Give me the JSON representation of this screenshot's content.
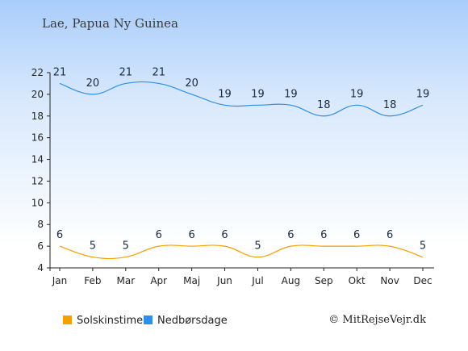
{
  "title": "Lae, Papua Ny Guinea",
  "credit": "© MitRejseVejr.dk",
  "colors": {
    "sunshine": "#f5a000",
    "rain": "#2f8fe8"
  },
  "chart_data": {
    "type": "line",
    "categories": [
      "Jan",
      "Feb",
      "Mar",
      "Apr",
      "Maj",
      "Jun",
      "Jul",
      "Aug",
      "Sep",
      "Okt",
      "Nov",
      "Dec"
    ],
    "ylim": [
      4,
      22
    ],
    "yticks": [
      4,
      6,
      8,
      10,
      12,
      14,
      16,
      18,
      20,
      22
    ],
    "grid": false,
    "legend_position": "bottom",
    "series": [
      {
        "name": "Solskinstimer",
        "color": "#f5a000",
        "values": [
          6,
          5,
          5,
          6,
          6,
          6,
          5,
          6,
          6,
          6,
          6,
          5
        ]
      },
      {
        "name": "Nedbørsdage",
        "color": "#2f8fe8",
        "values": [
          21,
          20,
          21,
          21,
          20,
          19,
          19,
          19,
          18,
          19,
          18,
          19
        ]
      }
    ]
  }
}
